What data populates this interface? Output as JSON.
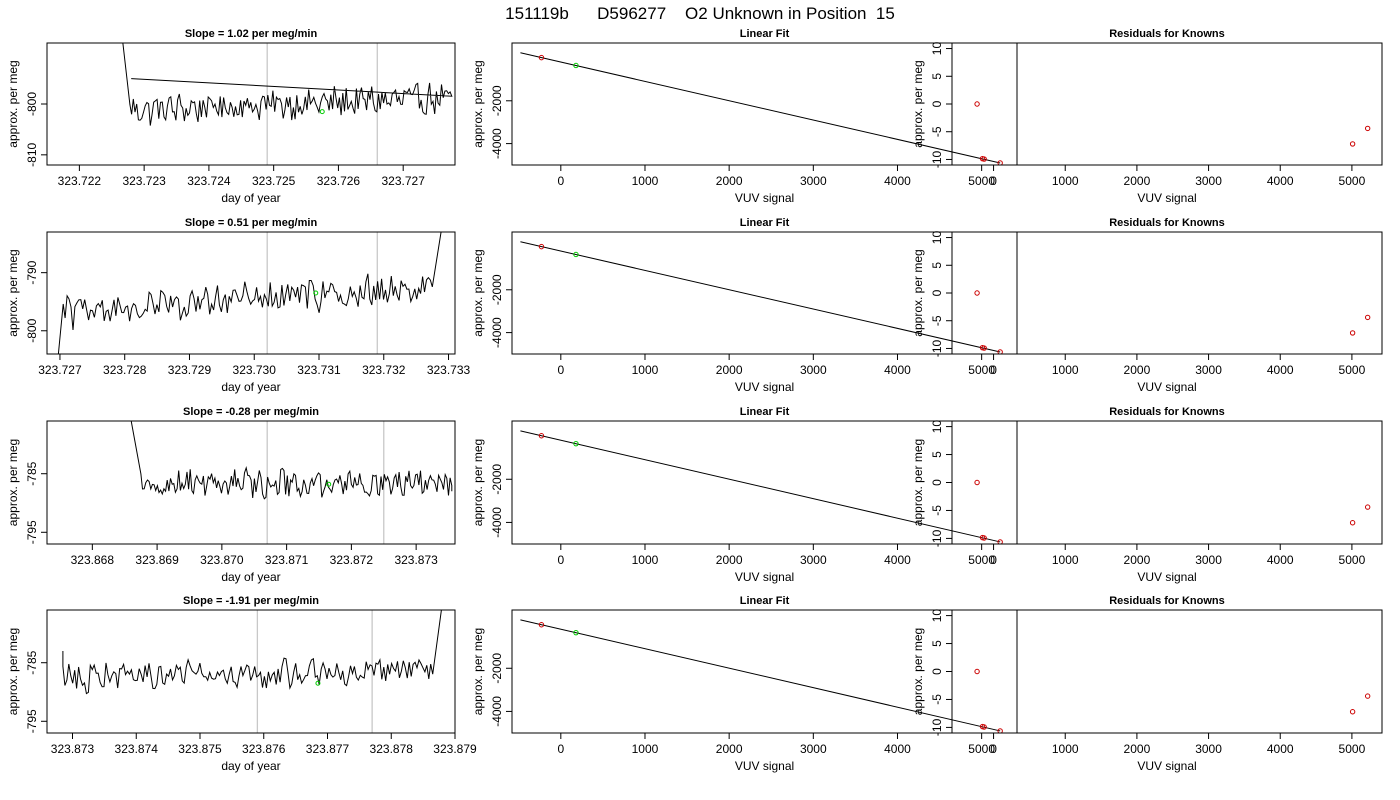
{
  "page": {
    "title": "151119b      D596277    O2 Unknown in Position  15"
  },
  "chart_data": [
    {
      "type": "line",
      "row": 1,
      "col": 1,
      "title": "Slope =  1.02  per meg/min",
      "xlabel": "day of year",
      "ylabel": "approx. per meg",
      "xlim": [
        323.7215,
        323.7278
      ],
      "ylim": [
        -812,
        -788
      ],
      "xticks": [
        323.722,
        323.723,
        323.724,
        323.725,
        323.726,
        323.727
      ],
      "xtick_labels": [
        "323.722",
        "323.723",
        "323.724",
        "323.725",
        "323.726",
        "323.727"
      ],
      "yticks": [
        -800,
        -810
      ],
      "ytick_labels": [
        "-800",
        "-810"
      ],
      "vlines": [
        323.7249,
        323.7266
      ],
      "series_start": 323.72278,
      "series_end": 323.72775,
      "series_base": -800.5,
      "series_amp": 2.6,
      "series_trend": 2.4,
      "spike_start": [
        323.7226,
        -780
      ],
      "spike_end": [
        323.7228,
        -795
      ],
      "marker": {
        "x": 323.72575,
        "y": -801.5,
        "color": "#00cc00"
      },
      "series_color": "#000000"
    },
    {
      "type": "scatter",
      "row": 1,
      "col": 2,
      "title": "Linear Fit",
      "xlabel": "VUV signal",
      "ylabel": "approx. per meg",
      "xlim": [
        -580,
        5420
      ],
      "ylim": [
        -5000,
        700
      ],
      "xticks": [
        0,
        1000,
        2000,
        3000,
        4000,
        5000
      ],
      "xtick_labels": [
        "0",
        "1000",
        "2000",
        "3000",
        "4000",
        "5000"
      ],
      "yticks": [
        -2000,
        -4000
      ],
      "ytick_labels": [
        "-2000",
        "-4000"
      ],
      "line": [
        [
          -480,
          244
        ],
        [
          5220,
          -4905
        ]
      ],
      "points_red": [
        [
          -230,
          17
        ],
        [
          5010,
          -4705
        ],
        [
          5030,
          -4722
        ],
        [
          5220,
          -4905
        ]
      ],
      "points_green": [
        [
          180,
          -350
        ]
      ]
    },
    {
      "type": "scatter",
      "row": 1,
      "col": 3,
      "title": "Residuals for Knowns",
      "xlabel": "VUV signal",
      "ylabel": "approx. per meg",
      "xlim": [
        -580,
        5420
      ],
      "ylim": [
        -11,
        11
      ],
      "xticks": [
        0,
        1000,
        2000,
        3000,
        4000,
        5000
      ],
      "xtick_labels": [
        "0",
        "1000",
        "2000",
        "3000",
        "4000",
        "5000"
      ],
      "yticks": [
        10,
        5,
        0,
        -5,
        -10
      ],
      "ytick_labels": [
        "10",
        "5",
        "0",
        "-5",
        "-10"
      ],
      "points_red": [
        [
          -230,
          0
        ],
        [
          5010,
          -7.2
        ],
        [
          5220,
          -4.4
        ]
      ]
    },
    {
      "type": "line",
      "row": 2,
      "col": 1,
      "title": "Slope =  0.51  per meg/min",
      "xlabel": "day of year",
      "ylabel": "approx. per meg",
      "xlim": [
        323.7268,
        323.7331
      ],
      "ylim": [
        -804,
        -783
      ],
      "xticks": [
        323.727,
        323.728,
        323.729,
        323.73,
        323.731,
        323.732,
        323.733
      ],
      "xtick_labels": [
        "323.727",
        "323.728",
        "323.729",
        "323.730",
        "323.731",
        "323.732",
        "323.733"
      ],
      "yticks": [
        -790,
        -800
      ],
      "ytick_labels": [
        "-790",
        "-800"
      ],
      "vlines": [
        323.7302,
        323.7319
      ],
      "series_start": 323.72705,
      "series_end": 323.73275,
      "series_base": -795.5,
      "series_amp": 2.4,
      "series_trend": 4.5,
      "spike_start": [
        323.72695,
        -807
      ],
      "spike_end": [
        323.7329,
        -782
      ],
      "marker": {
        "x": 323.73095,
        "y": -793.5,
        "color": "#00cc00"
      },
      "series_color": "#000000"
    },
    {
      "type": "scatter",
      "row": 2,
      "col": 2,
      "title": "Linear Fit",
      "xlabel": "VUV signal",
      "ylabel": "approx. per meg",
      "xlim": [
        -580,
        5420
      ],
      "ylim": [
        -5000,
        700
      ],
      "xticks": [
        0,
        1000,
        2000,
        3000,
        4000,
        5000
      ],
      "xtick_labels": [
        "0",
        "1000",
        "2000",
        "3000",
        "4000",
        "5000"
      ],
      "yticks": [
        -2000,
        -4000
      ],
      "ytick_labels": [
        "-2000",
        "-4000"
      ],
      "line": [
        [
          -480,
          244
        ],
        [
          5220,
          -4905
        ]
      ],
      "points_red": [
        [
          -230,
          17
        ],
        [
          5010,
          -4705
        ],
        [
          5030,
          -4722
        ],
        [
          5220,
          -4905
        ]
      ],
      "points_green": [
        [
          180,
          -350
        ]
      ]
    },
    {
      "type": "scatter",
      "row": 2,
      "col": 3,
      "title": "Residuals for Knowns",
      "xlabel": "VUV signal",
      "ylabel": "approx. per meg",
      "xlim": [
        -580,
        5420
      ],
      "ylim": [
        -11,
        11
      ],
      "xticks": [
        0,
        1000,
        2000,
        3000,
        4000,
        5000
      ],
      "xtick_labels": [
        "0",
        "1000",
        "2000",
        "3000",
        "4000",
        "5000"
      ],
      "yticks": [
        10,
        5,
        0,
        -5,
        -10
      ],
      "ytick_labels": [
        "10",
        "5",
        "0",
        "-5",
        "-10"
      ],
      "points_red": [
        [
          -230,
          0
        ],
        [
          5010,
          -7.2
        ],
        [
          5220,
          -4.4
        ]
      ]
    },
    {
      "type": "line",
      "row": 3,
      "col": 1,
      "title": "Slope =  -0.28  per meg/min",
      "xlabel": "day of year",
      "ylabel": "approx. per meg",
      "xlim": [
        323.8673,
        323.8736
      ],
      "ylim": [
        -797,
        -776
      ],
      "xticks": [
        323.868,
        323.869,
        323.87,
        323.871,
        323.872,
        323.873
      ],
      "xtick_labels": [
        "323.868",
        "323.869",
        "323.870",
        "323.871",
        "323.872",
        "323.873"
      ],
      "yticks": [
        -785,
        -795
      ],
      "ytick_labels": [
        "-785",
        "-795"
      ],
      "vlines": [
        323.8707,
        323.8725
      ],
      "series_start": 323.86875,
      "series_end": 323.87355,
      "series_base": -786.6,
      "series_amp": 2.0,
      "series_trend": 0.0,
      "spike_start": [
        323.8686,
        -776
      ],
      "spike_end": [
        323.87355,
        -788
      ],
      "marker": {
        "x": 323.87165,
        "y": -786.8,
        "color": "#00cc00"
      },
      "series_color": "#000000"
    },
    {
      "type": "scatter",
      "row": 3,
      "col": 2,
      "title": "Linear Fit",
      "xlabel": "VUV signal",
      "ylabel": "approx. per meg",
      "xlim": [
        -580,
        5420
      ],
      "ylim": [
        -5000,
        700
      ],
      "xticks": [
        0,
        1000,
        2000,
        3000,
        4000,
        5000
      ],
      "xtick_labels": [
        "0",
        "1000",
        "2000",
        "3000",
        "4000",
        "5000"
      ],
      "yticks": [
        -2000,
        -4000
      ],
      "ytick_labels": [
        "-2000",
        "-4000"
      ],
      "line": [
        [
          -480,
          244
        ],
        [
          5220,
          -4905
        ]
      ],
      "points_red": [
        [
          -230,
          17
        ],
        [
          5010,
          -4705
        ],
        [
          5030,
          -4722
        ],
        [
          5220,
          -4905
        ]
      ],
      "points_green": [
        [
          180,
          -350
        ]
      ]
    },
    {
      "type": "scatter",
      "row": 3,
      "col": 3,
      "title": "Residuals for Knowns",
      "xlabel": "VUV signal",
      "ylabel": "approx. per meg",
      "xlim": [
        -580,
        5420
      ],
      "ylim": [
        -11,
        11
      ],
      "xticks": [
        0,
        1000,
        2000,
        3000,
        4000,
        5000
      ],
      "xtick_labels": [
        "0",
        "1000",
        "2000",
        "3000",
        "4000",
        "5000"
      ],
      "yticks": [
        10,
        5,
        0,
        -5,
        -10
      ],
      "ytick_labels": [
        "10",
        "5",
        "0",
        "-5",
        "-10"
      ],
      "points_red": [
        [
          -230,
          0
        ],
        [
          5010,
          -7.2
        ],
        [
          5220,
          -4.4
        ]
      ]
    },
    {
      "type": "line",
      "row": 4,
      "col": 1,
      "title": "Slope =  -1.91  per meg/min",
      "xlabel": "day of year",
      "ylabel": "approx. per meg",
      "xlim": [
        323.8726,
        323.879
      ],
      "ylim": [
        -797,
        -776
      ],
      "xticks": [
        323.873,
        323.874,
        323.875,
        323.876,
        323.877,
        323.878,
        323.879
      ],
      "xtick_labels": [
        "323.873",
        "323.874",
        "323.875",
        "323.876",
        "323.877",
        "323.878",
        "323.879"
      ],
      "yticks": [
        -785,
        -795
      ],
      "ytick_labels": [
        "-785",
        "-795"
      ],
      "vlines": [
        323.8759,
        323.8777
      ],
      "series_start": 323.87285,
      "series_end": 323.87865,
      "series_base": -787.2,
      "series_amp": 2.1,
      "series_trend": 1.5,
      "spike_start": [
        323.87285,
        -783
      ],
      "spike_end": [
        323.8788,
        -775
      ],
      "marker": {
        "x": 323.87685,
        "y": -788.5,
        "color": "#00cc00"
      },
      "series_color": "#000000"
    },
    {
      "type": "scatter",
      "row": 4,
      "col": 2,
      "title": "Linear Fit",
      "xlabel": "VUV signal",
      "ylabel": "approx. per meg",
      "xlim": [
        -580,
        5420
      ],
      "ylim": [
        -5000,
        700
      ],
      "xticks": [
        0,
        1000,
        2000,
        3000,
        4000,
        5000
      ],
      "xtick_labels": [
        "0",
        "1000",
        "2000",
        "3000",
        "4000",
        "5000"
      ],
      "yticks": [
        -2000,
        -4000
      ],
      "ytick_labels": [
        "-2000",
        "-4000"
      ],
      "line": [
        [
          -480,
          244
        ],
        [
          5220,
          -4905
        ]
      ],
      "points_red": [
        [
          -230,
          17
        ],
        [
          5010,
          -4705
        ],
        [
          5030,
          -4722
        ],
        [
          5220,
          -4905
        ]
      ],
      "points_green": [
        [
          180,
          -350
        ]
      ]
    },
    {
      "type": "scatter",
      "row": 4,
      "col": 3,
      "title": "Residuals for Knowns",
      "xlabel": "VUV signal",
      "ylabel": "approx. per meg",
      "xlim": [
        -580,
        5420
      ],
      "ylim": [
        -11,
        11
      ],
      "xticks": [
        0,
        1000,
        2000,
        3000,
        4000,
        5000
      ],
      "xtick_labels": [
        "0",
        "1000",
        "2000",
        "3000",
        "4000",
        "5000"
      ],
      "yticks": [
        10,
        5,
        0,
        -5,
        -10
      ],
      "ytick_labels": [
        "10",
        "5",
        "0",
        "-5",
        "-10"
      ],
      "points_red": [
        [
          -230,
          0
        ],
        [
          5010,
          -7.2
        ],
        [
          5220,
          -4.4
        ]
      ]
    }
  ]
}
